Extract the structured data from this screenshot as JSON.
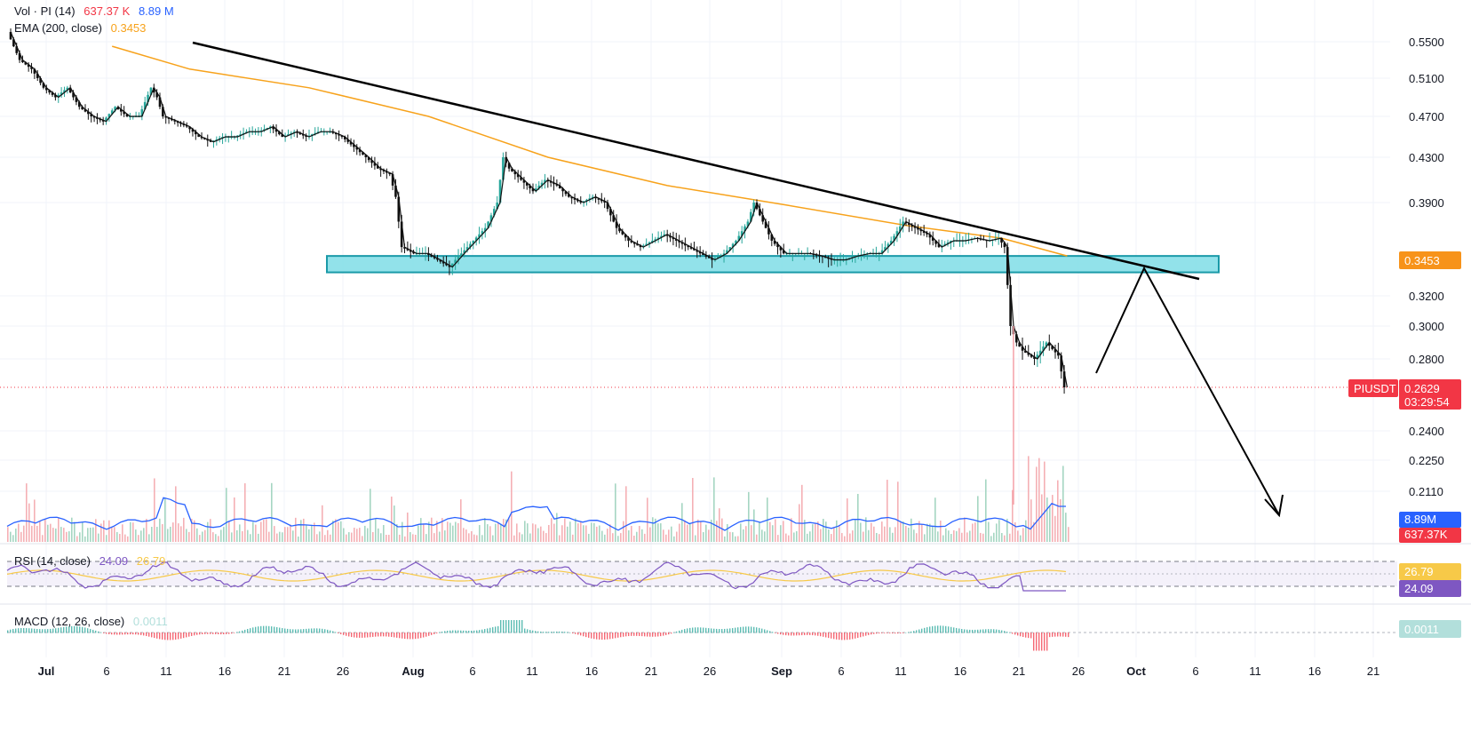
{
  "chart_data": {
    "type": "candlestick",
    "symbol": "PIUSDT",
    "legend": {
      "volume": {
        "label": "Vol · PI (14)",
        "value": "637.37 K",
        "ma_value": "8.89 M"
      },
      "ema": {
        "label": "EMA (200, close)",
        "value": "0.3453"
      },
      "rsi": {
        "label": "RSI (14, close)",
        "value": "24.09",
        "ma_value": "26.79"
      },
      "macd": {
        "label": "MACD (12, 26, close)",
        "value": "0.0011"
      }
    },
    "price_axis_ticks": [
      "0.5500",
      "0.5100",
      "0.4700",
      "0.4300",
      "0.3900",
      "0.3200",
      "0.3000",
      "0.2800",
      "0.2400",
      "0.2250",
      "0.2110"
    ],
    "time_axis_ticks": [
      "Jul",
      "6",
      "11",
      "16",
      "21",
      "26",
      "Aug",
      "6",
      "11",
      "16",
      "21",
      "26",
      "Sep",
      "6",
      "11",
      "16",
      "21",
      "26",
      "Oct",
      "6",
      "11",
      "16",
      "21"
    ],
    "last_price": "0.2629",
    "countdown": "03:29:54",
    "ema_badge": "0.3453",
    "volume_ma_badge": "8.89M",
    "volume_badge": "637.37K",
    "rsi_ma_badge": "26.79",
    "rsi_badge": "24.09",
    "macd_badge": "0.0011",
    "price_path": [
      [
        0,
        0.56
      ],
      [
        2,
        0.53
      ],
      [
        4,
        0.52
      ],
      [
        6,
        0.5
      ],
      [
        8,
        0.49
      ],
      [
        10,
        0.5
      ],
      [
        12,
        0.48
      ],
      [
        14,
        0.47
      ],
      [
        16,
        0.465
      ],
      [
        18,
        0.48
      ],
      [
        20,
        0.47
      ],
      [
        22,
        0.47
      ],
      [
        24,
        0.5
      ],
      [
        25,
        0.49
      ],
      [
        26,
        0.47
      ],
      [
        28,
        0.465
      ],
      [
        30,
        0.46
      ],
      [
        32,
        0.45
      ],
      [
        34,
        0.445
      ],
      [
        36,
        0.45
      ],
      [
        38,
        0.45
      ],
      [
        40,
        0.455
      ],
      [
        42,
        0.455
      ],
      [
        44,
        0.46
      ],
      [
        46,
        0.45
      ],
      [
        48,
        0.455
      ],
      [
        50,
        0.45
      ],
      [
        52,
        0.455
      ],
      [
        54,
        0.455
      ],
      [
        56,
        0.45
      ],
      [
        58,
        0.44
      ],
      [
        60,
        0.43
      ],
      [
        62,
        0.42
      ],
      [
        64,
        0.415
      ],
      [
        65,
        0.395
      ],
      [
        66,
        0.355
      ],
      [
        68,
        0.35
      ],
      [
        70,
        0.35
      ],
      [
        72,
        0.345
      ],
      [
        74,
        0.34
      ],
      [
        76,
        0.35
      ],
      [
        78,
        0.36
      ],
      [
        80,
        0.37
      ],
      [
        82,
        0.39
      ],
      [
        83,
        0.43
      ],
      [
        84,
        0.42
      ],
      [
        86,
        0.41
      ],
      [
        88,
        0.4
      ],
      [
        90,
        0.41
      ],
      [
        92,
        0.405
      ],
      [
        94,
        0.395
      ],
      [
        96,
        0.39
      ],
      [
        98,
        0.395
      ],
      [
        100,
        0.39
      ],
      [
        102,
        0.37
      ],
      [
        104,
        0.36
      ],
      [
        106,
        0.355
      ],
      [
        108,
        0.36
      ],
      [
        110,
        0.365
      ],
      [
        112,
        0.36
      ],
      [
        114,
        0.355
      ],
      [
        116,
        0.35
      ],
      [
        118,
        0.345
      ],
      [
        120,
        0.35
      ],
      [
        122,
        0.36
      ],
      [
        124,
        0.375
      ],
      [
        125,
        0.39
      ],
      [
        126,
        0.38
      ],
      [
        128,
        0.36
      ],
      [
        130,
        0.35
      ],
      [
        132,
        0.35
      ],
      [
        134,
        0.35
      ],
      [
        136,
        0.348
      ],
      [
        138,
        0.345
      ],
      [
        140,
        0.345
      ],
      [
        142,
        0.348
      ],
      [
        144,
        0.35
      ],
      [
        146,
        0.35
      ],
      [
        148,
        0.36
      ],
      [
        150,
        0.375
      ],
      [
        152,
        0.37
      ],
      [
        154,
        0.365
      ],
      [
        156,
        0.355
      ],
      [
        158,
        0.36
      ],
      [
        160,
        0.36
      ],
      [
        162,
        0.362
      ],
      [
        164,
        0.36
      ],
      [
        166,
        0.362
      ],
      [
        167,
        0.355
      ],
      [
        168,
        0.3
      ],
      [
        169,
        0.29
      ],
      [
        170,
        0.285
      ],
      [
        172,
        0.28
      ],
      [
        174,
        0.29
      ],
      [
        176,
        0.282
      ],
      [
        177,
        0.2629
      ]
    ],
    "ema_path": [
      [
        17,
        0.545
      ],
      [
        30,
        0.52
      ],
      [
        50,
        0.5
      ],
      [
        70,
        0.47
      ],
      [
        90,
        0.43
      ],
      [
        110,
        0.405
      ],
      [
        130,
        0.388
      ],
      [
        150,
        0.372
      ],
      [
        166,
        0.362
      ],
      [
        177,
        0.348
      ]
    ],
    "support_zone": {
      "low": 0.34,
      "high": 0.348,
      "from_day": 53,
      "to_day": 200
    },
    "resistance_trendline": {
      "from": [
        31,
        0.535
      ],
      "to": [
        202,
        0.342
      ]
    },
    "projection": [
      [
        180,
        0.275
      ],
      [
        189,
        0.345
      ],
      [
        211,
        0.205
      ]
    ]
  }
}
